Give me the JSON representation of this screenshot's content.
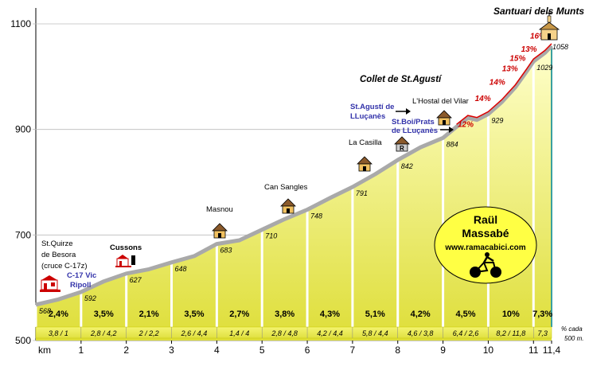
{
  "chart_data": {
    "type": "area",
    "title": "Santuari dels Munts",
    "subtitle": "Collet de St.Agustí",
    "xlabel": "km",
    "ylim": [
      500,
      1100
    ],
    "xlim": [
      0,
      11.4
    ],
    "yticks": [
      "1100",
      "900",
      "700",
      "500"
    ],
    "xticks": [
      {
        "x": 1,
        "label": "1"
      },
      {
        "x": 2,
        "label": "2"
      },
      {
        "x": 3,
        "label": "3"
      },
      {
        "x": 4,
        "label": "4"
      },
      {
        "x": 5,
        "label": "5"
      },
      {
        "x": 6,
        "label": "6"
      },
      {
        "x": 7,
        "label": "7"
      },
      {
        "x": 8,
        "label": "8"
      },
      {
        "x": 9,
        "label": "9"
      },
      {
        "x": 10,
        "label": "10"
      },
      {
        "x": 11,
        "label": "11"
      },
      {
        "x": 11.4,
        "label": "11,4"
      }
    ],
    "altitude_markers": [
      {
        "x": 0,
        "y": 568,
        "label": "568"
      },
      {
        "x": 1,
        "y": 592,
        "label": "592"
      },
      {
        "x": 2,
        "y": 627,
        "label": "627"
      },
      {
        "x": 3,
        "y": 648,
        "label": "648"
      },
      {
        "x": 4,
        "y": 683,
        "label": "683"
      },
      {
        "x": 5,
        "y": 710,
        "label": "710"
      },
      {
        "x": 6,
        "y": 748,
        "label": "748"
      },
      {
        "x": 7,
        "y": 791,
        "label": "791"
      },
      {
        "x": 8,
        "y": 842,
        "label": "842"
      },
      {
        "x": 9,
        "y": 884,
        "label": "884"
      },
      {
        "x": 10,
        "y": 929,
        "label": "929"
      },
      {
        "x": 11,
        "y": 1029,
        "label": "1029"
      },
      {
        "x": 11.4,
        "y": 1058,
        "label": "1058"
      }
    ],
    "profile": [
      [
        0,
        568
      ],
      [
        0.5,
        578
      ],
      [
        1,
        592
      ],
      [
        1.5,
        612
      ],
      [
        2,
        627
      ],
      [
        2.5,
        635
      ],
      [
        3,
        648
      ],
      [
        3.5,
        660
      ],
      [
        4,
        683
      ],
      [
        4.5,
        690
      ],
      [
        5,
        710
      ],
      [
        5.5,
        730
      ],
      [
        6,
        748
      ],
      [
        6.5,
        770
      ],
      [
        7,
        791
      ],
      [
        7.5,
        815
      ],
      [
        8,
        842
      ],
      [
        8.5,
        866
      ],
      [
        9,
        884
      ],
      [
        9.3,
        905
      ],
      [
        9.55,
        922
      ],
      [
        9.75,
        918
      ],
      [
        10,
        929
      ],
      [
        10.3,
        952
      ],
      [
        10.6,
        980
      ],
      [
        10.85,
        1010
      ],
      [
        11,
        1029
      ],
      [
        11.25,
        1045
      ],
      [
        11.4,
        1058
      ]
    ],
    "gradients": [
      "2,4%",
      "3,5%",
      "2,1%",
      "3,5%",
      "2,7%",
      "3,8%",
      "4,3%",
      "5,1%",
      "4,2%",
      "4,5%",
      "10%",
      "7,3%"
    ],
    "segment_gradients": [
      "3,8  /  1",
      "2,8  /  4,2",
      "2  /  2,2",
      "2,6  /  4,4",
      "1,4  /  4",
      "2,8  /  4,8",
      "4,2  /  4,4",
      "5,8  /  4,4",
      "4,6  /  3,8",
      "6,4  /  2,6",
      "8,2  /  11,8",
      "7,3"
    ],
    "segment_note": "% cada 500 m.",
    "steep_labels": [
      {
        "x": 9.5,
        "y": 905,
        "label": "12%"
      },
      {
        "x": 9.88,
        "y": 954,
        "label": "14%"
      },
      {
        "x": 10.2,
        "y": 985,
        "label": "14%"
      },
      {
        "x": 10.48,
        "y": 1010,
        "label": "13%"
      },
      {
        "x": 10.65,
        "y": 1030,
        "label": "15%"
      },
      {
        "x": 10.9,
        "y": 1047,
        "label": "13%"
      },
      {
        "x": 11.1,
        "y": 1072,
        "label": "16%"
      }
    ],
    "places": {
      "start": [
        "St.Quirze",
        "de Besora",
        "(cruce C-17z)"
      ],
      "start_roads": [
        "C-17 Vic",
        "Ripoll"
      ],
      "cussons": "Cussons",
      "masnou": "Masnou",
      "can_sangles": "Can Sangles",
      "la_casilla": "La Casilla",
      "hostal": "L'Hostal del Vilar",
      "st_agusti": [
        "St.Agustí de",
        "LLuçanès"
      ],
      "st_boi": [
        "St.Boi/Prats",
        "de LLuçanès"
      ]
    },
    "author": [
      "Raül",
      "Massabé",
      "www.ramacabici.com"
    ]
  }
}
